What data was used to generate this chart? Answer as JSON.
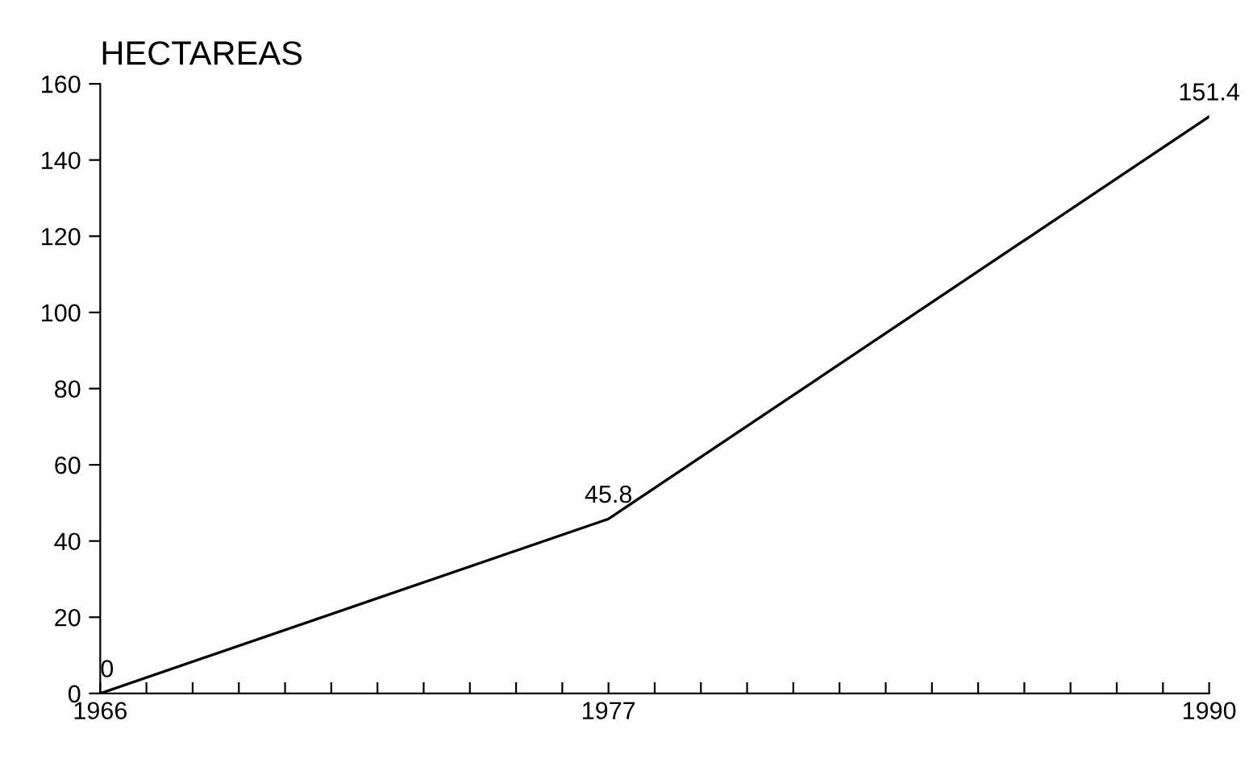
{
  "chart_data": {
    "type": "line",
    "ylabel": "HECTAREAS",
    "x": [
      1966,
      1977,
      1990
    ],
    "values": [
      0,
      45.8,
      151.4
    ],
    "color": "#000000",
    "data_labels": true,
    "xlim": [
      1966,
      1990
    ],
    "xticks": [
      1966,
      {
        "value": 1967,
        "label": null
      },
      {
        "value": 1968,
        "label": null
      },
      {
        "value": 1969,
        "label": null
      },
      {
        "value": 1970,
        "label": null
      },
      {
        "value": 1971,
        "label": null
      },
      {
        "value": 1972,
        "label": null
      },
      {
        "value": 1973,
        "label": null
      },
      {
        "value": 1974,
        "label": null
      },
      {
        "value": 1975,
        "label": null
      },
      {
        "value": 1976,
        "label": null
      },
      1977,
      {
        "value": 1978,
        "label": null
      },
      {
        "value": 1979,
        "label": null
      },
      {
        "value": 1980,
        "label": null
      },
      {
        "value": 1981,
        "label": null
      },
      {
        "value": 1982,
        "label": null
      },
      {
        "value": 1983,
        "label": null
      },
      {
        "value": 1984,
        "label": null
      },
      {
        "value": 1985,
        "label": null
      },
      {
        "value": 1986,
        "label": null
      },
      {
        "value": 1987,
        "label": null
      },
      {
        "value": 1988,
        "label": null
      },
      {
        "value": 1989,
        "label": null
      },
      1990
    ],
    "ylim": [
      0,
      160
    ],
    "yticks": [
      0,
      20,
      40,
      60,
      80,
      100,
      120,
      140,
      160
    ]
  }
}
